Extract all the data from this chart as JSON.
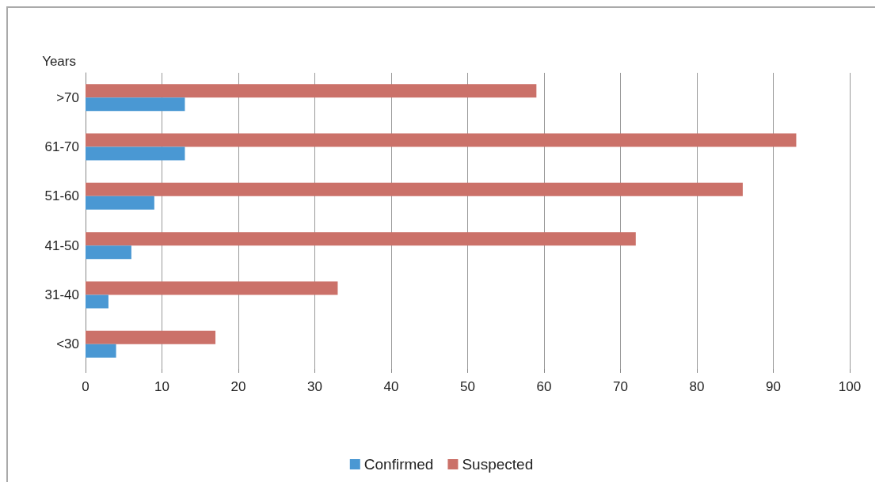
{
  "chart_data": {
    "type": "bar",
    "orientation": "horizontal",
    "ylabel": "Years",
    "categories": [
      ">70",
      "61-70",
      "51-60",
      "41-50",
      "31-40",
      "<30"
    ],
    "series": [
      {
        "name": "Confirmed",
        "color": "#4a98d3",
        "values": [
          13,
          13,
          9,
          6,
          3,
          4
        ]
      },
      {
        "name": "Suspected",
        "color": "#cb7169",
        "values": [
          59,
          93,
          86,
          72,
          33,
          17
        ]
      }
    ],
    "xlim": [
      0,
      100
    ],
    "xticks": [
      0,
      10,
      20,
      30,
      40,
      50,
      60,
      70,
      80,
      90,
      100
    ],
    "grid": "x",
    "legend": "bottom"
  }
}
